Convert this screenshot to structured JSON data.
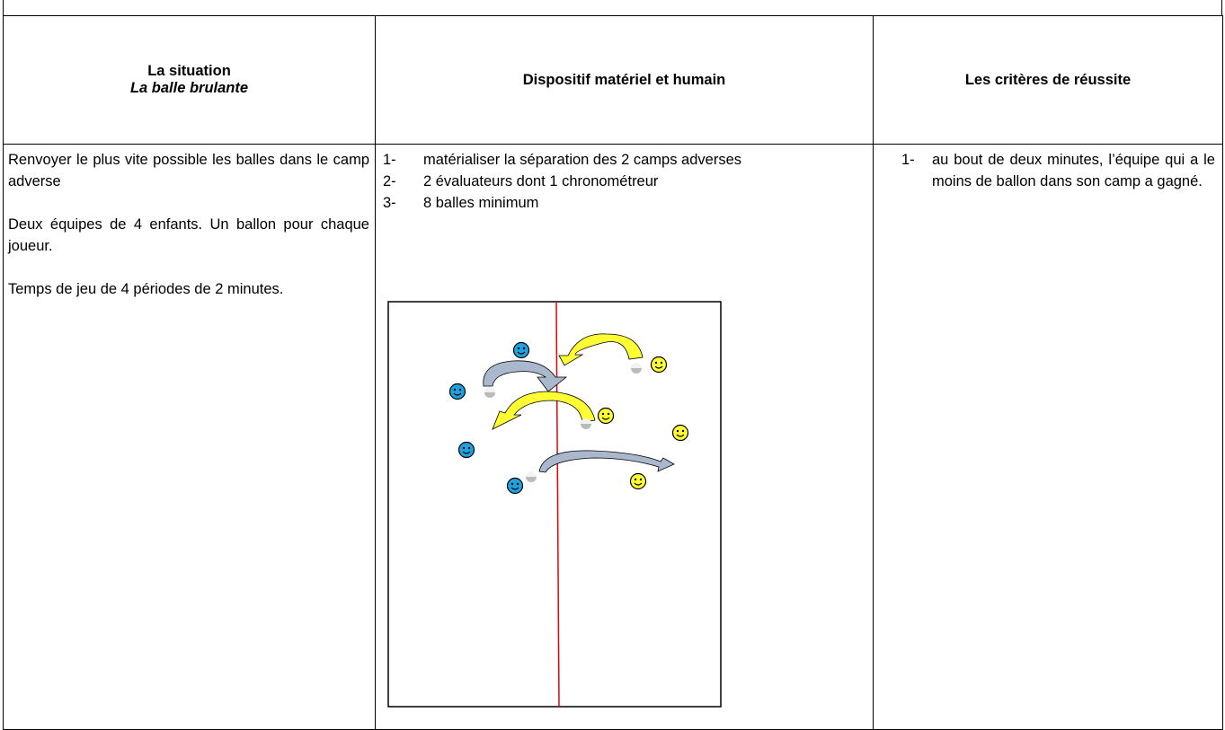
{
  "table": {
    "headers": [
      "La situation",
      "Dispositif matériel et humain",
      "Les critères de réussite"
    ],
    "header_subtitle": "La balle brulante",
    "situation": [
      "Renvoyer le plus vite possible les balles dans le camp adverse",
      "Deux équipes de 4 enfants. Un ballon pour chaque joueur.",
      "Temps de jeu de 4 périodes de 2 minutes."
    ],
    "dispositif": [
      {
        "number": "1-",
        "text": "matérialiser la séparation des 2 camps adverses"
      },
      {
        "number": "2-",
        "text": "2 évaluateurs dont 1 chronométreur"
      },
      {
        "number": "3-",
        "text": "8 balles minimum"
      }
    ],
    "criteres": [
      {
        "number": "1-",
        "text": "au bout de deux minutes, l’équipe qui a le moins de ballon dans son camp a gagné."
      }
    ]
  }
}
